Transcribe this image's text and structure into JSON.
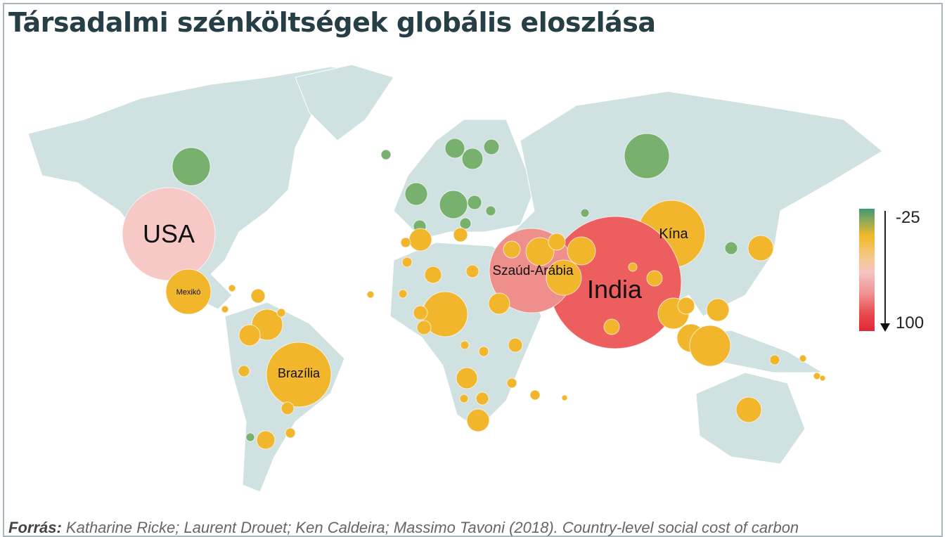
{
  "title": "Társadalmi szénköltségek globális eloszlása",
  "legend": {
    "min_label": "-25",
    "max_label": "100",
    "colors": [
      "#3f9a72",
      "#f0b92a",
      "#f6c3c3",
      "#e32636"
    ]
  },
  "labels": {
    "usa": "USA",
    "mexico": "Mexikó",
    "brazil": "Brazília",
    "saudi": "Szaúd-Arábia",
    "india": "India",
    "china": "Kína"
  },
  "footer": {
    "prefix": "Forrás:",
    "text": "Katharine Ricke; Laurent Drouet; Ken Caldeira; Massimo Tavoni (2018). Country-level social cost of carbon"
  },
  "colors": {
    "land": "#cfe1e1",
    "green": "#78b06e",
    "yellow": "#f1b62c",
    "pink": "#f7c9c6",
    "salmon": "#ef8f8c",
    "red": "#ec5f5e"
  }
}
